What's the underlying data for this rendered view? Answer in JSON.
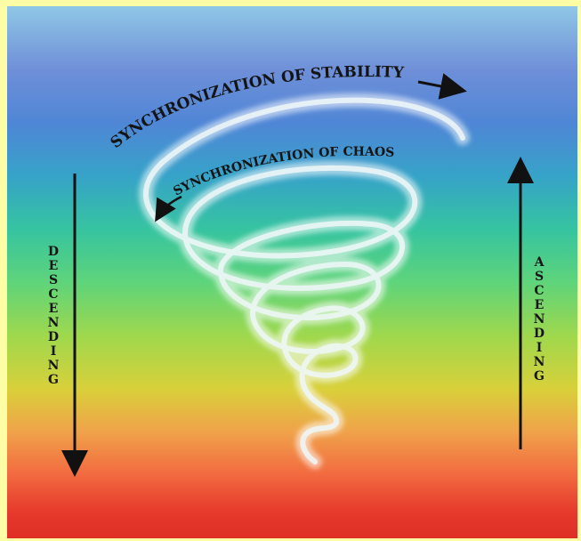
{
  "labels": {
    "stability": "SYNCHRONIZATION OF STABILITY",
    "chaos": "SYNCHRONIZATION OF CHAOS",
    "descending": "DESCENDING",
    "ascending": "ASCENDING"
  },
  "colors": {
    "frame": "#fdfda6",
    "spiral": "#e9f5f7",
    "arrow": "#111111"
  }
}
